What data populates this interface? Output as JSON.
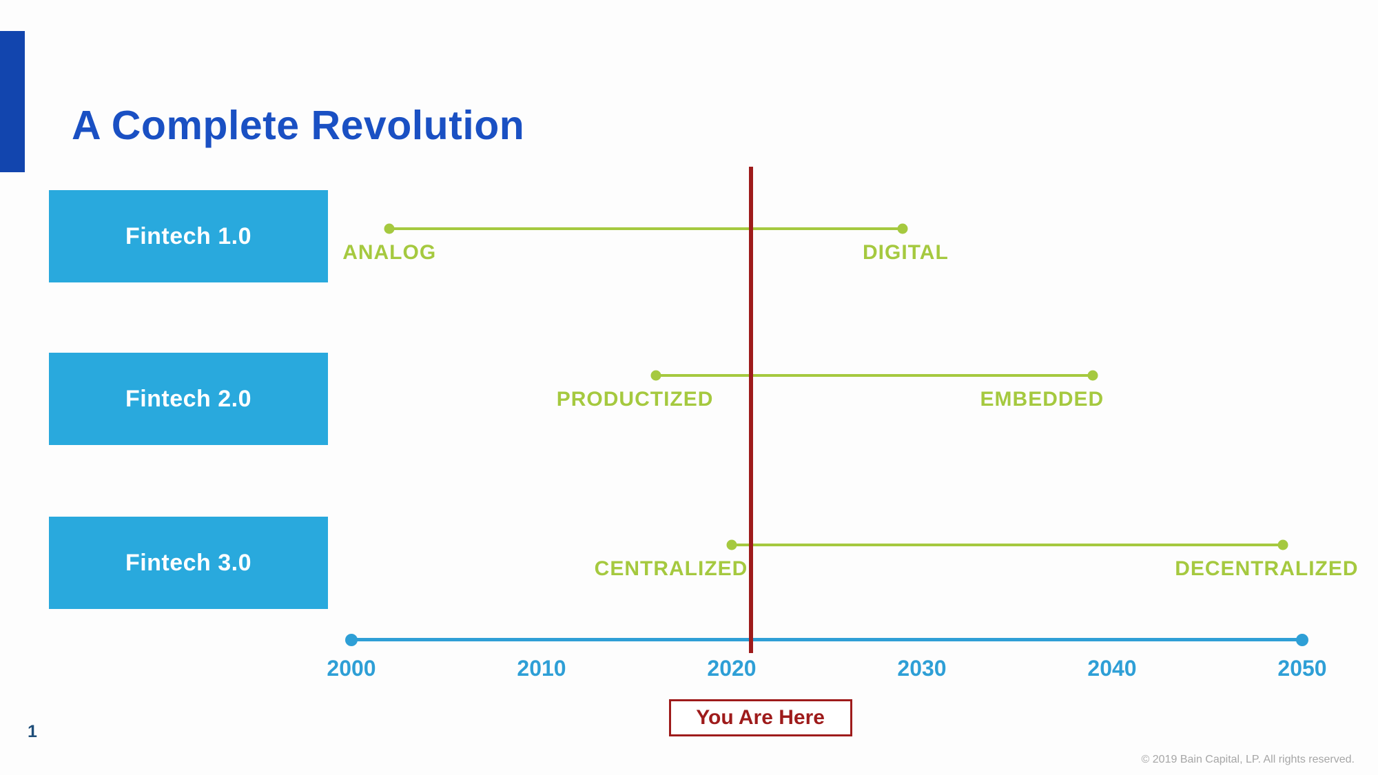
{
  "slide": {
    "title": "A Complete Revolution",
    "page_number": "1",
    "footer": "© 2019 Bain Capital, LP. All rights reserved."
  },
  "colors": {
    "title_blue": "#1a50c3",
    "accent_bar_blue": "#1245ae",
    "box_blue": "#29a9dd",
    "box_text": "#ffffff",
    "green": "#a5c93f",
    "axis_blue": "#2e9fd6",
    "red": "#9e1b1b",
    "page_number_navy": "#1f4e79",
    "footer_gray": "#a6a6a6"
  },
  "timeline": {
    "axis": {
      "start": 2000,
      "end": 2050,
      "ticks": [
        "2000",
        "2010",
        "2020",
        "2030",
        "2040",
        "2050"
      ]
    },
    "eras": [
      {
        "name": "Fintech 1.0",
        "start_label": "ANALOG",
        "end_label": "DIGITAL",
        "start_year": 2002,
        "end_year": 2029
      },
      {
        "name": "Fintech 2.0",
        "start_label": "PRODUCTIZED",
        "end_label": "EMBEDDED",
        "start_year": 2016,
        "end_year": 2039
      },
      {
        "name": "Fintech 3.0",
        "start_label": "CENTRALIZED",
        "end_label": "DECENTRALIZED",
        "start_year": 2020,
        "end_year": 2049
      }
    ],
    "marker": {
      "label": "You Are Here",
      "year": 2021
    }
  }
}
